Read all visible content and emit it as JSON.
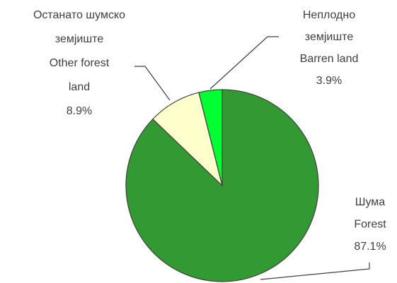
{
  "chart_data": {
    "type": "pie",
    "categories": [
      [
        "Шума",
        "Forest"
      ],
      [
        "Останато шумско",
        "земјиште",
        "Other forest",
        "land"
      ],
      [
        "Неплодно",
        "земјиште",
        "Barren land"
      ]
    ],
    "values": [
      87.1,
      8.9,
      3.9
    ],
    "value_labels": [
      "87.1%",
      "8.9%",
      "3.9%"
    ],
    "colors": [
      "#339933",
      "#ffffcc",
      "#00ff33"
    ]
  }
}
